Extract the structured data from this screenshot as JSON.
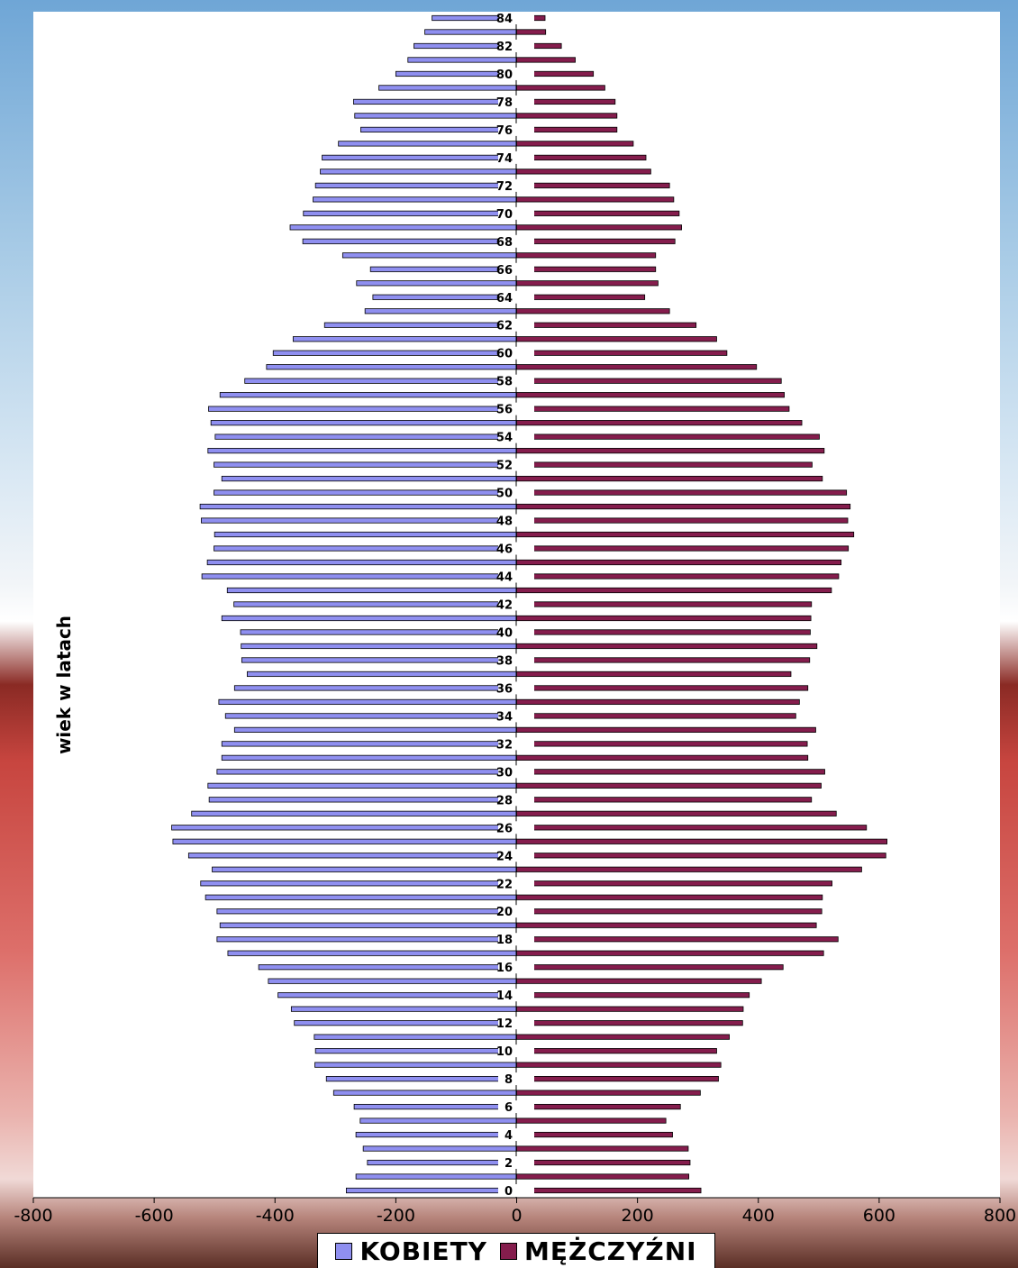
{
  "chart_data": {
    "type": "bar",
    "orientation": "horizontal",
    "ylabel": "wiek w latach",
    "xlim": [
      -800,
      800
    ],
    "x_ticks": [
      "-800",
      "-600",
      "-400",
      "-200",
      "0",
      "200",
      "400",
      "600",
      "800"
    ],
    "ages": [
      0,
      1,
      2,
      3,
      4,
      5,
      6,
      7,
      8,
      9,
      10,
      11,
      12,
      13,
      14,
      15,
      16,
      17,
      18,
      19,
      20,
      21,
      22,
      23,
      24,
      25,
      26,
      27,
      28,
      29,
      30,
      31,
      32,
      33,
      34,
      35,
      36,
      37,
      38,
      39,
      40,
      41,
      42,
      43,
      44,
      45,
      46,
      47,
      48,
      49,
      50,
      51,
      52,
      53,
      54,
      55,
      56,
      57,
      58,
      59,
      60,
      61,
      62,
      63,
      64,
      65,
      66,
      67,
      68,
      69,
      70,
      71,
      72,
      73,
      74,
      75,
      76,
      77,
      78,
      79,
      80,
      81,
      82,
      83,
      84
    ],
    "age_labels": [
      "0",
      "2",
      "4",
      "6",
      "8",
      "10",
      "12",
      "14",
      "16",
      "18",
      "20",
      "22",
      "24",
      "26",
      "28",
      "30",
      "32",
      "34",
      "36",
      "38",
      "40",
      "42",
      "44",
      "46",
      "48",
      "50",
      "52",
      "54",
      "56",
      "58",
      "60",
      "62",
      "64",
      "66",
      "68",
      "70",
      "72",
      "74",
      "76",
      "78",
      "80",
      "82",
      "84"
    ],
    "series": [
      {
        "name": "KOBIETY",
        "color": "#8f8ff0",
        "values": [
          -282,
          -266,
          -247,
          -254,
          -266,
          -259,
          -269,
          -303,
          -315,
          -334,
          -333,
          -335,
          -368,
          -373,
          -395,
          -411,
          -427,
          -478,
          -496,
          -491,
          -496,
          -515,
          -523,
          -504,
          -543,
          -569,
          -571,
          -538,
          -509,
          -511,
          -496,
          -488,
          -488,
          -467,
          -482,
          -493,
          -467,
          -446,
          -455,
          -456,
          -457,
          -488,
          -468,
          -479,
          -521,
          -512,
          -501,
          -500,
          -522,
          -524,
          -501,
          -488,
          -501,
          -511,
          -499,
          -506,
          -510,
          -491,
          -450,
          -414,
          -403,
          -370,
          -318,
          -251,
          -238,
          -265,
          -242,
          -288,
          -354,
          -375,
          -353,
          -337,
          -333,
          -325,
          -322,
          -295,
          -258,
          -268,
          -270,
          -228,
          -200,
          -180,
          -170,
          -152,
          -140
        ]
      },
      {
        "name": "MĘŻCZYŹNI",
        "color": "#851d4d",
        "values": [
          305,
          285,
          287,
          284,
          258,
          247,
          271,
          304,
          334,
          338,
          331,
          352,
          374,
          375,
          385,
          405,
          441,
          508,
          532,
          496,
          505,
          506,
          522,
          571,
          611,
          613,
          579,
          529,
          488,
          504,
          510,
          482,
          481,
          495,
          462,
          468,
          482,
          454,
          485,
          497,
          486,
          487,
          488,
          521,
          533,
          537,
          549,
          558,
          548,
          552,
          546,
          506,
          489,
          509,
          501,
          472,
          451,
          443,
          438,
          397,
          348,
          331,
          297,
          253,
          212,
          234,
          230,
          230,
          262,
          273,
          269,
          260,
          253,
          222,
          214,
          193,
          166,
          166,
          163,
          146,
          127,
          97,
          74,
          48,
          47
        ]
      }
    ],
    "legend_position": "bottom-center",
    "grid": false
  }
}
